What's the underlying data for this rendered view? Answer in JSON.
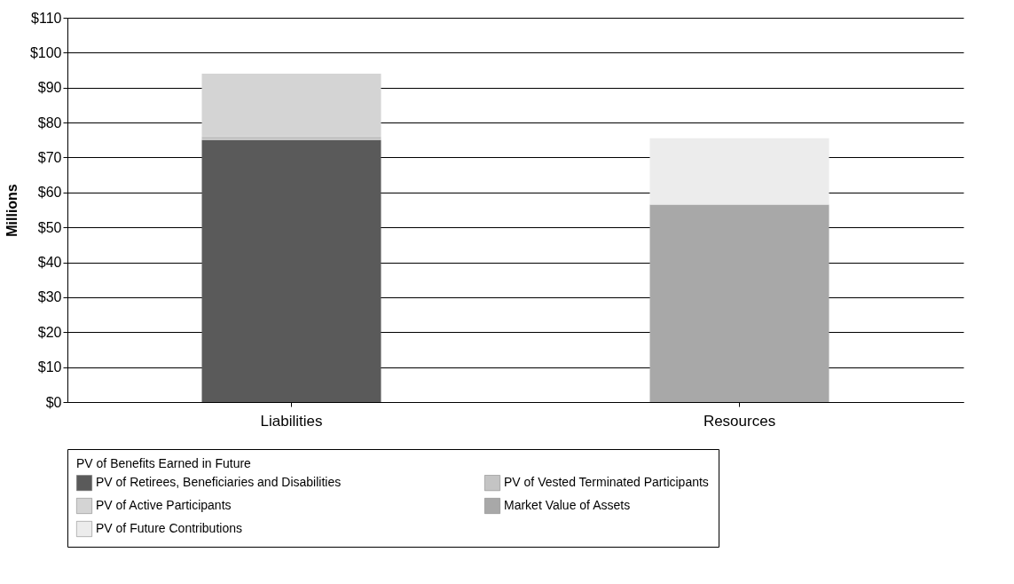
{
  "chart_data": {
    "type": "bar",
    "stacked": true,
    "ylabel": "Millions",
    "legend_title": "PV of Benefits Earned in Future",
    "categories": [
      "Liabilities",
      "Resources"
    ],
    "series": [
      {
        "name": "PV of Retirees, Beneficiaries and Disabilities",
        "color": "#5a5a5a",
        "values": [
          75,
          null
        ]
      },
      {
        "name": "PV of Vested Terminated Participants",
        "color": "#c4c4c4",
        "values": [
          1,
          null
        ]
      },
      {
        "name": "PV of Active Participants",
        "color": "#d4d4d4",
        "values": [
          18,
          null
        ]
      },
      {
        "name": "Market Value of Assets",
        "color": "#a8a8a8",
        "values": [
          null,
          56.5
        ]
      },
      {
        "name": "PV of Future Contributions",
        "color": "#ececec",
        "values": [
          null,
          19
        ]
      }
    ],
    "ylim": [
      0,
      110
    ],
    "yticks": [
      {
        "value": 0,
        "label": "$0"
      },
      {
        "value": 10,
        "label": "$10"
      },
      {
        "value": 20,
        "label": "$20"
      },
      {
        "value": 30,
        "label": "$30"
      },
      {
        "value": 40,
        "label": "$40"
      },
      {
        "value": 50,
        "label": "$50"
      },
      {
        "value": 60,
        "label": "$60"
      },
      {
        "value": 70,
        "label": "$70"
      },
      {
        "value": 80,
        "label": "$80"
      },
      {
        "value": 90,
        "label": "$90"
      },
      {
        "value": 100,
        "label": "$100"
      },
      {
        "value": 110,
        "label": "$110"
      }
    ],
    "grid": "y",
    "legend": "bottom"
  }
}
